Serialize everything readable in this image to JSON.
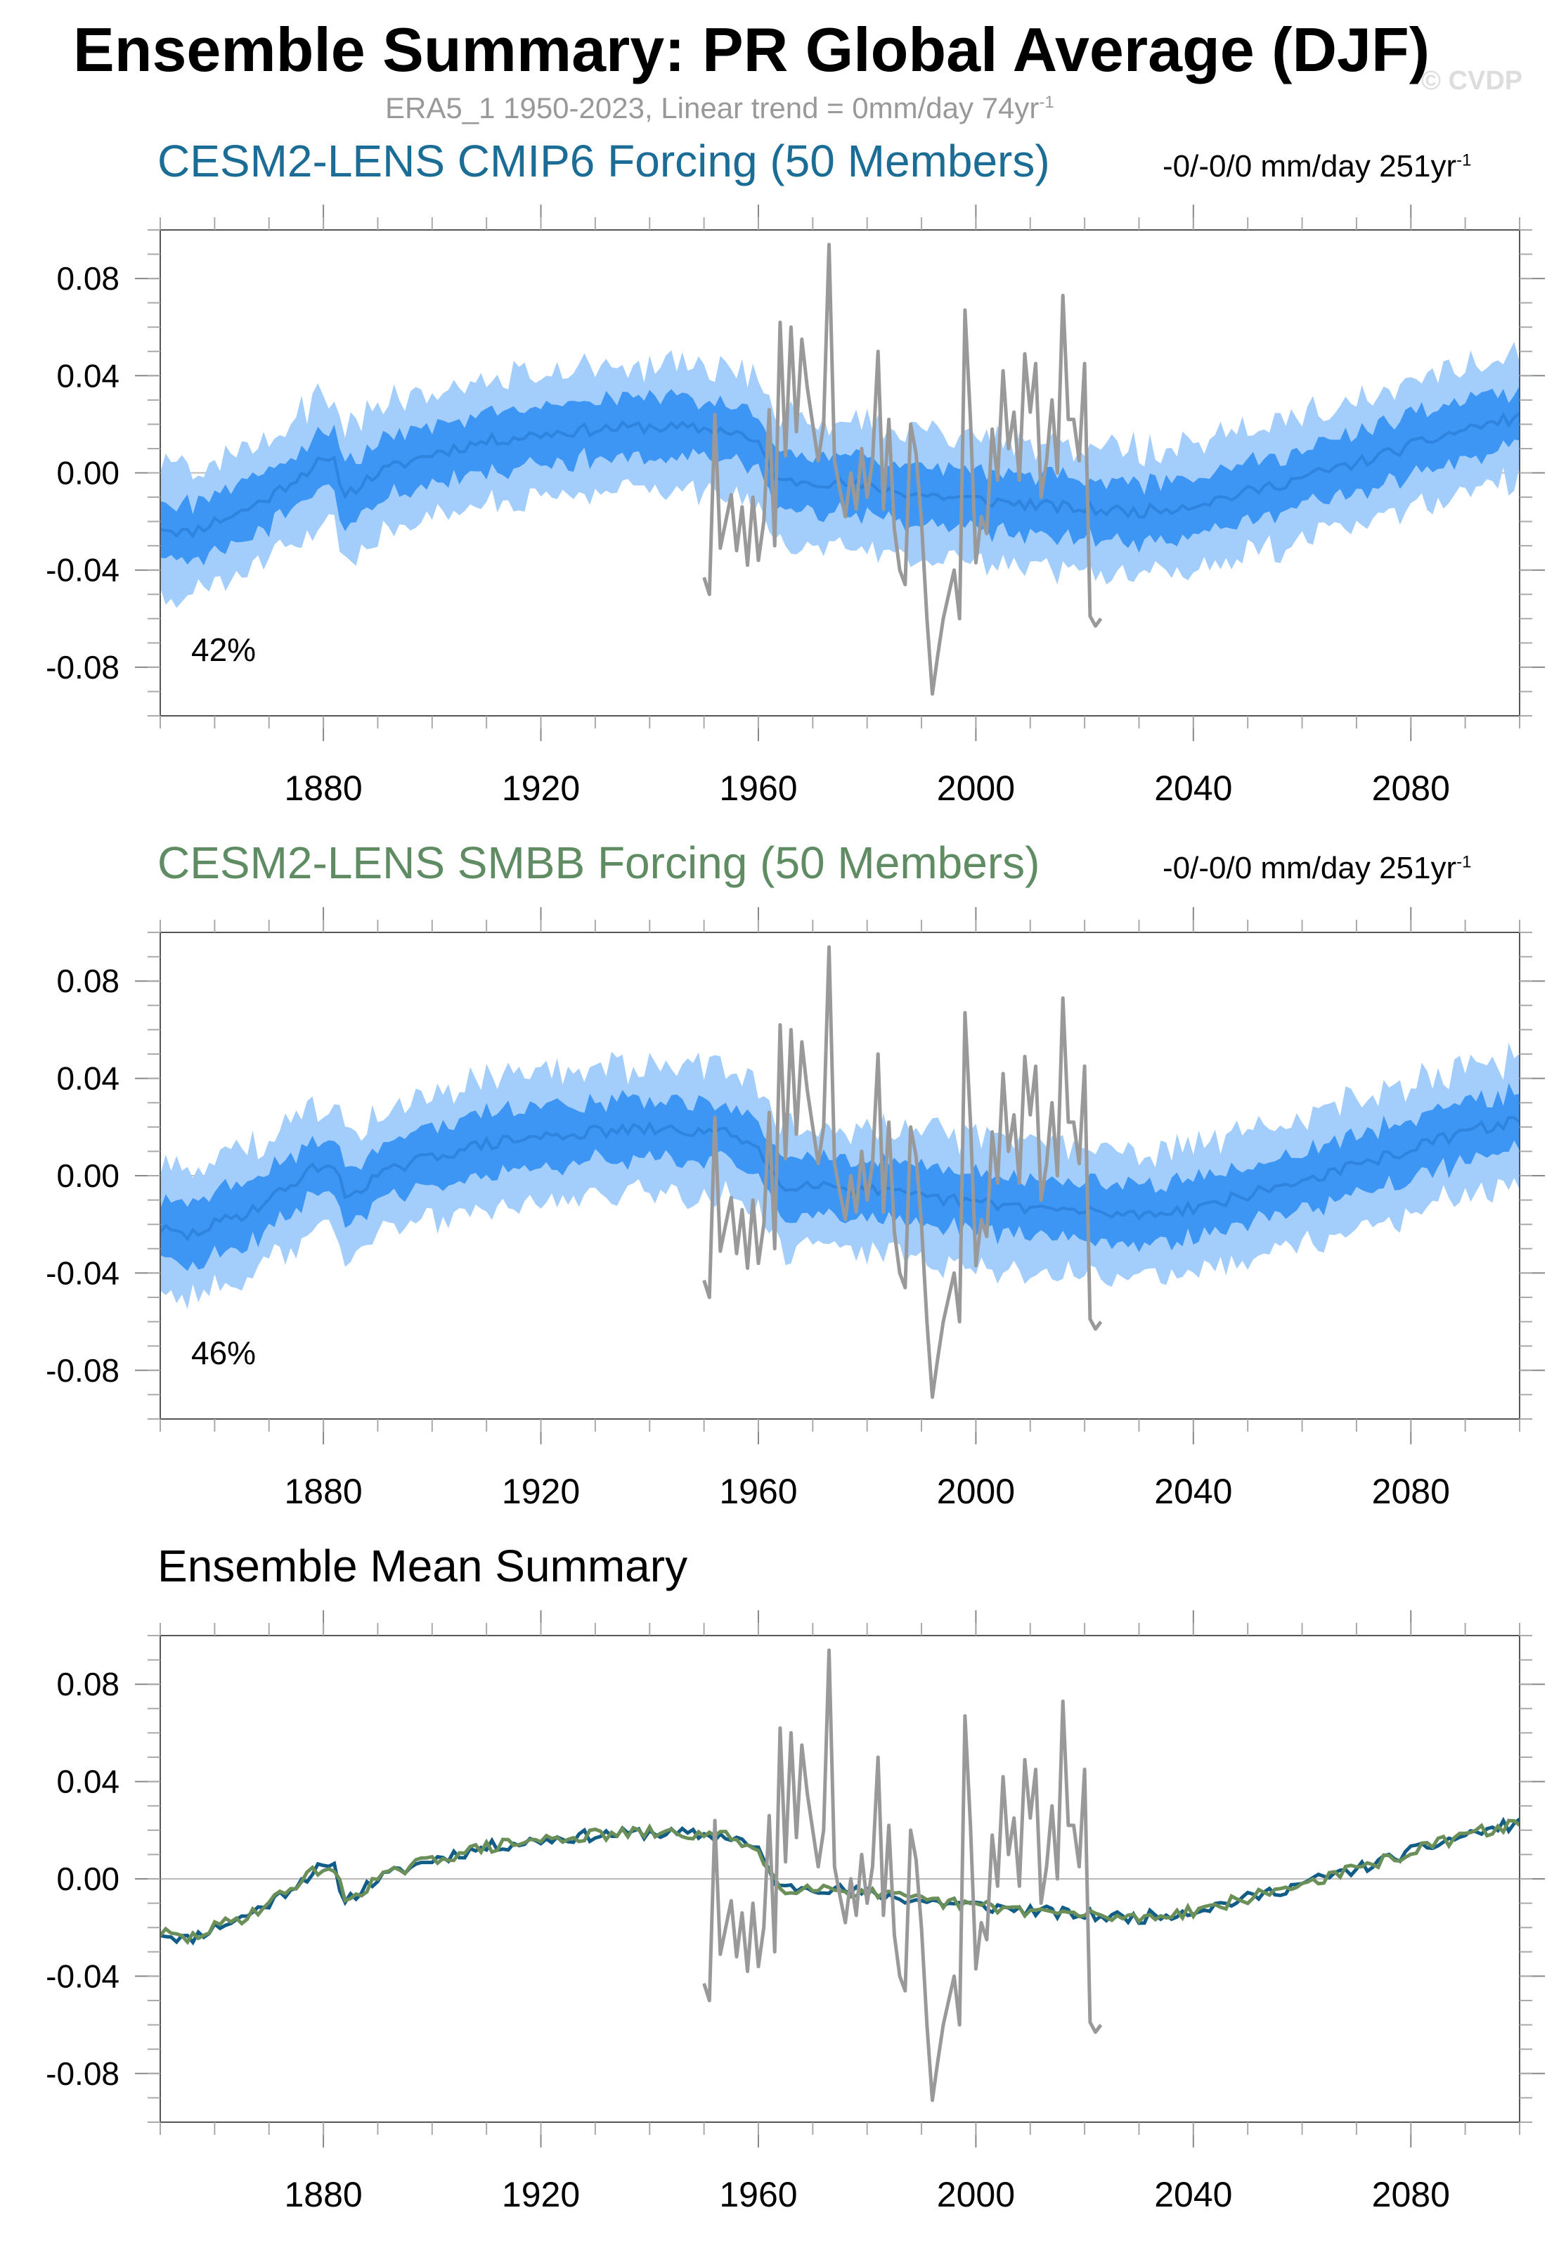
{
  "page": {
    "title": "Ensemble Summary: PR Global Average (DJF)",
    "subtitle_main": "ERA5_1 1950-2023, Linear trend = 0mm/day 74yr",
    "subtitle_sup": "-1",
    "watermark": "© CVDP"
  },
  "panels": [
    {
      "title": "CESM2-LENS CMIP6 Forcing (50 Members)",
      "trend": "-0/-0/0 mm/day 251yr",
      "trend_sup": "-1",
      "percent": "42%",
      "color": "#1b6d96"
    },
    {
      "title": "CESM2-LENS SMBB Forcing (50 Members)",
      "trend": "-0/-0/0 mm/day 251yr",
      "trend_sup": "-1",
      "percent": "46%",
      "color": "#5f8c62"
    },
    {
      "title": "Ensemble Mean Summary"
    }
  ],
  "colors": {
    "outer_band": "#a3cdfb",
    "inner_band": "#3d96f3",
    "mean_line": "#2e84de",
    "obs_line": "#999999",
    "cmip6_mean": "#115d87",
    "smbb_mean": "#6b8f58",
    "zero_line": "#bbbbbb"
  },
  "chart_data": {
    "type": "line",
    "title": "Ensemble Summary: PR Global Average (DJF)",
    "ylabel": "mm/day",
    "xlim": [
      1850,
      2100
    ],
    "ylim": [
      -0.1,
      0.1
    ],
    "xticks": [
      1880,
      1920,
      1960,
      2000,
      2040,
      2080
    ],
    "xtick_labels": [
      "1880",
      "1920",
      "1960",
      "2000",
      "2040",
      "2080"
    ],
    "yticks": [
      0.08,
      0.04,
      0.0,
      -0.04,
      -0.08
    ],
    "ytick_labels": [
      "0.08",
      "0.04",
      "0.00",
      "-0.04",
      "-0.08"
    ],
    "ensemble_mean_anchors": {
      "years": [
        1850,
        1855,
        1860,
        1865,
        1870,
        1875,
        1879,
        1882,
        1884,
        1890,
        1900,
        1910,
        1920,
        1930,
        1940,
        1950,
        1956,
        1960,
        1964,
        1970,
        1980,
        1990,
        2000,
        2010,
        2020,
        2030,
        2040,
        2050,
        2060,
        2070,
        2080,
        2090,
        2100
      ],
      "values": [
        -0.022,
        -0.025,
        -0.02,
        -0.016,
        -0.01,
        -0.002,
        0.004,
        0.004,
        -0.009,
        0.0,
        0.008,
        0.013,
        0.016,
        0.018,
        0.019,
        0.018,
        0.017,
        0.011,
        -0.004,
        -0.003,
        -0.006,
        -0.009,
        -0.011,
        -0.013,
        -0.015,
        -0.016,
        -0.013,
        -0.008,
        -0.002,
        0.004,
        0.011,
        0.018,
        0.023
      ]
    },
    "observations": {
      "name": "ERA5_1",
      "years": [
        1950,
        1951,
        1952,
        1953,
        1954,
        1955,
        1956,
        1957,
        1958,
        1959,
        1960,
        1961,
        1962,
        1963,
        1964,
        1965,
        1966,
        1967,
        1968,
        1969,
        1970,
        1971,
        1972,
        1973,
        1974,
        1975,
        1976,
        1977,
        1978,
        1979,
        1980,
        1981,
        1982,
        1983,
        1984,
        1985,
        1986,
        1987,
        1988,
        1989,
        1990,
        1991,
        1992,
        1993,
        1994,
        1995,
        1996,
        1997,
        1998,
        1999,
        2000,
        2001,
        2002,
        2003,
        2004,
        2005,
        2006,
        2007,
        2008,
        2009,
        2010,
        2011,
        2012,
        2013,
        2014,
        2015,
        2016,
        2017,
        2018,
        2019,
        2020,
        2021,
        2022,
        2023
      ],
      "values": [
        -0.043,
        -0.05,
        0.024,
        -0.031,
        -0.02,
        -0.009,
        -0.032,
        -0.014,
        -0.038,
        -0.01,
        -0.036,
        -0.02,
        0.026,
        -0.03,
        0.062,
        0.007,
        0.06,
        0.017,
        0.055,
        0.035,
        0.02,
        0.005,
        0.02,
        0.094,
        0.005,
        -0.007,
        -0.018,
        0.0,
        -0.015,
        0.01,
        -0.01,
        0.005,
        0.05,
        -0.015,
        0.022,
        -0.023,
        -0.04,
        -0.046,
        0.02,
        0.008,
        -0.02,
        -0.06,
        -0.091,
        -0.075,
        -0.06,
        -0.05,
        -0.04,
        -0.06,
        0.067,
        0.022,
        -0.037,
        -0.018,
        -0.025,
        0.018,
        -0.003,
        0.042,
        0.01,
        0.025,
        -0.003,
        0.049,
        0.025,
        0.045,
        -0.01,
        0.005,
        0.03,
        0.0,
        0.073,
        0.022,
        0.022,
        0.005,
        0.045,
        -0.059,
        -0.063,
        -0.06
      ]
    },
    "series": [
      {
        "name": "CESM2-LENS CMIP6 Forcing (50 Members)",
        "inner_spread": 0.012,
        "outer_spread": 0.026
      },
      {
        "name": "CESM2-LENS SMBB Forcing (50 Members)",
        "inner_spread": 0.012,
        "outer_spread": 0.026
      }
    ]
  }
}
